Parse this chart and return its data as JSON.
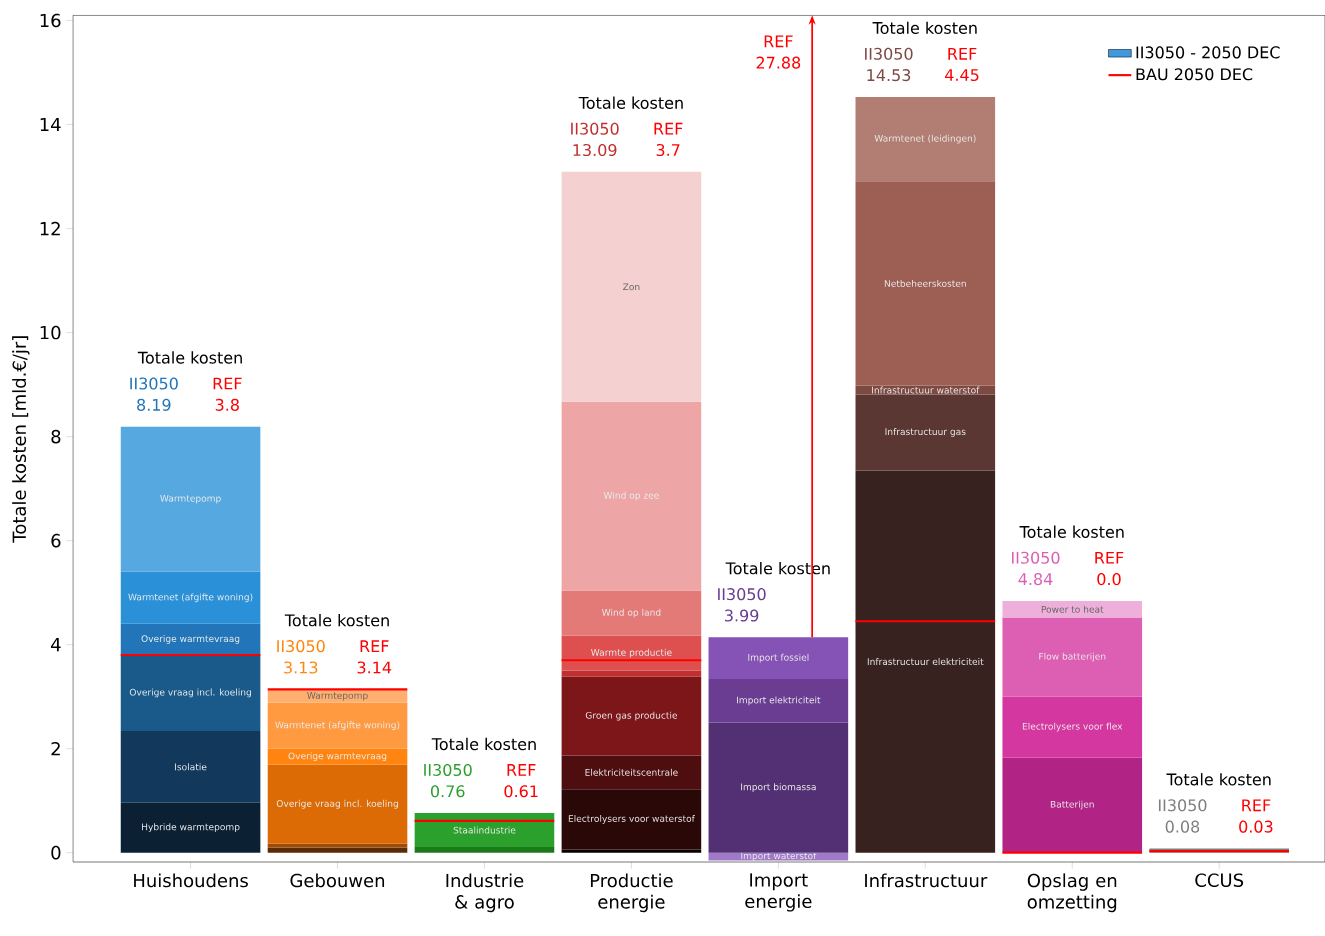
{
  "chart_data": {
    "type": "bar",
    "stacked": true,
    "ylabel": "Totale kosten [mld.€/jr]",
    "categories": [
      "Huishoudens",
      "Gebouwen",
      "Industrie & agro",
      "Productie energie",
      "Import energie",
      "Infrastructuur",
      "Opslag en omzetting",
      "CCUS"
    ],
    "ylim": [
      -0.18,
      16.1
    ],
    "yticks": [
      0,
      2,
      4,
      6,
      8,
      10,
      12,
      14,
      16
    ],
    "legend": "top right",
    "totals": [
      "8.19",
      "3.13",
      "0.76",
      "13.09",
      "3.99",
      "14.53",
      "4.84",
      "0.08"
    ],
    "series": [
      {
        "type": "bar",
        "name": "II3050 - 2050 DEC",
        "color": "#3d9ae0",
        "values": [
          null,
          null,
          null,
          null,
          null,
          null,
          null,
          null
        ]
      },
      {
        "name": "Hybride warmtepomp",
        "color": "#0b2033",
        "values": [
          0.96,
          null,
          null,
          null,
          null,
          null,
          null,
          null
        ]
      },
      {
        "name": "Isolatie",
        "color": "#12395c",
        "values": [
          1.38,
          null,
          null,
          null,
          null,
          null,
          null,
          null
        ]
      },
      {
        "name": "Overige vraag incl. koeling",
        "color": "#1a5a8a",
        "values": [
          1.46,
          null,
          null,
          null,
          null,
          null,
          null,
          null
        ]
      },
      {
        "name": "Overige warmtevraag",
        "color": "#2275b8",
        "values": [
          0.6,
          null,
          null,
          null,
          null,
          null,
          null,
          null
        ]
      },
      {
        "name": "Warmtenet (afgifte woning)",
        "color": "#2a90d8",
        "values": [
          1.0,
          null,
          null,
          null,
          null,
          null,
          null,
          null
        ]
      },
      {
        "name": "Warmtepomp",
        "color": "#56a8e0",
        "values": [
          2.79,
          null,
          null,
          null,
          null,
          null,
          null,
          null
        ]
      },
      {
        "color": "#5a2b06",
        "values": [
          null,
          0.1,
          null,
          null,
          null,
          null,
          null,
          null
        ]
      },
      {
        "color": "#a04a08",
        "values": [
          null,
          0.07,
          null,
          null,
          null,
          null,
          null,
          null
        ]
      },
      {
        "name": "Overige vraag incl. koeling",
        "color": "#dc6b05",
        "values": [
          null,
          1.52,
          null,
          null,
          null,
          null,
          null,
          null
        ]
      },
      {
        "name": "Overige warmtevraag",
        "color": "#ff8510",
        "values": [
          null,
          0.31,
          null,
          null,
          null,
          null,
          null,
          null
        ]
      },
      {
        "name": "Warmtenet (afgifte woning)",
        "color": "#ff9a40",
        "values": [
          null,
          0.88,
          null,
          null,
          null,
          null,
          null,
          null
        ]
      },
      {
        "name": "Warmtepomp",
        "color": "#ffb070",
        "values": [
          null,
          0.25,
          null,
          null,
          null,
          null,
          null,
          null
        ]
      },
      {
        "color": "#1c7a1c",
        "values": [
          null,
          null,
          0.11,
          null,
          null,
          null,
          null,
          null
        ]
      },
      {
        "name": "Staalindustrie",
        "color": "#2ca02c",
        "values": [
          null,
          null,
          0.65,
          null,
          null,
          null,
          null,
          null
        ]
      },
      {
        "color": "#0a0000",
        "values": [
          null,
          null,
          null,
          0.06,
          null,
          null,
          null,
          null
        ]
      },
      {
        "name": "Electrolysers voor waterstof",
        "color": "#2a0808",
        "values": [
          null,
          null,
          null,
          1.16,
          null,
          null,
          null,
          null
        ]
      },
      {
        "name": "Elektriciteitscentrale",
        "color": "#4e0d0f",
        "values": [
          null,
          null,
          null,
          0.65,
          null,
          null,
          null,
          null
        ]
      },
      {
        "name": "Groen gas productie",
        "color": "#7c1619",
        "values": [
          null,
          null,
          null,
          1.51,
          null,
          null,
          null,
          null
        ]
      },
      {
        "color": "#c03030",
        "values": [
          null,
          null,
          null,
          0.12,
          null,
          null,
          null,
          null
        ]
      },
      {
        "name": "Warmte productie",
        "color": "#de5050",
        "values": [
          null,
          null,
          null,
          0.67,
          null,
          null,
          null,
          null
        ]
      },
      {
        "name": "Wind op land",
        "color": "#e47a78",
        "values": [
          null,
          null,
          null,
          0.87,
          null,
          null,
          null,
          null
        ]
      },
      {
        "name": "Wind op zee",
        "color": "#eda5a5",
        "values": [
          null,
          null,
          null,
          3.63,
          null,
          null,
          null,
          null
        ]
      },
      {
        "name": "Zon",
        "color": "#f5d0d0",
        "values": [
          null,
          null,
          null,
          4.42,
          null,
          null,
          null,
          null
        ]
      },
      {
        "name": "Import waterstof",
        "color": "#a07ac8",
        "values": [
          null,
          null,
          null,
          null,
          -0.15,
          null,
          null,
          null
        ]
      },
      {
        "name": "Import biomassa",
        "color": "#532f73",
        "values": [
          null,
          null,
          null,
          null,
          2.5,
          null,
          null,
          null
        ]
      },
      {
        "name": "Import elektriciteit",
        "color": "#6a3d92",
        "values": [
          null,
          null,
          null,
          null,
          0.84,
          null,
          null,
          null
        ]
      },
      {
        "name": "Import fossiel",
        "color": "#8552b5",
        "values": [
          null,
          null,
          null,
          null,
          0.8,
          null,
          null,
          null
        ]
      },
      {
        "name": "Infrastructuur elektriciteit",
        "color": "#38221f",
        "values": [
          null,
          null,
          null,
          null,
          null,
          7.35,
          null,
          null
        ]
      },
      {
        "name": "Infrastructuur gas",
        "color": "#5a3732",
        "values": [
          null,
          null,
          null,
          null,
          null,
          1.46,
          null,
          null
        ]
      },
      {
        "name": "Infrastructuur waterstof",
        "color": "#7d4a42",
        "values": [
          null,
          null,
          null,
          null,
          null,
          0.17,
          null,
          null
        ]
      },
      {
        "name": "Netbeheerskosten",
        "color": "#9d5f54",
        "values": [
          null,
          null,
          null,
          null,
          null,
          3.93,
          null,
          null
        ]
      },
      {
        "name": "Warmtenet (leidingen)",
        "color": "#b27d72",
        "values": [
          null,
          null,
          null,
          null,
          null,
          1.62,
          null,
          null
        ]
      },
      {
        "name": "Batterijen",
        "color": "#b22386",
        "values": [
          null,
          null,
          null,
          null,
          null,
          null,
          1.83,
          null
        ]
      },
      {
        "name": "Electrolysers voor flex",
        "color": "#d4379f",
        "values": [
          null,
          null,
          null,
          null,
          null,
          null,
          1.17,
          null
        ]
      },
      {
        "name": "Flow batterijen",
        "color": "#dc5fb4",
        "values": [
          null,
          null,
          null,
          null,
          null,
          null,
          1.52,
          null
        ]
      },
      {
        "name": "Power to heat",
        "color": "#eeb0db",
        "values": [
          null,
          null,
          null,
          null,
          null,
          null,
          0.32,
          null
        ]
      },
      {
        "color": "#7f7f7f",
        "values": [
          null,
          null,
          null,
          null,
          null,
          null,
          null,
          0.08
        ]
      }
    ],
    "ref_lines": [
      {
        "axis": "y",
        "value": 3.8,
        "color": "#ff0000",
        "label": "BAU 2050 DEC"
      },
      {
        "axis": "y",
        "value": 3.14,
        "color": "#ff0000"
      },
      {
        "axis": "y",
        "value": 0.61,
        "color": "#ff0000"
      },
      {
        "axis": "y",
        "value": 3.7,
        "color": "#ff0000"
      },
      {
        "axis": "y",
        "value": null,
        "color": "#ff0000"
      },
      {
        "axis": "y",
        "value": 4.45,
        "color": "#ff0000"
      },
      {
        "axis": "y",
        "value": 0.0,
        "color": "#ff0000"
      },
      {
        "axis": "y",
        "value": 0.03,
        "color": "#ff0000"
      }
    ],
    "annotations": [
      "Totale kosten",
      "II3050",
      "REF",
      "3.8",
      "Totale kosten",
      "II3050",
      "REF",
      "3.14",
      "Totale kosten",
      "II3050",
      "REF",
      "0.61",
      "Totale kosten",
      "II3050",
      "REF",
      "3.7",
      "Totale kosten",
      "II3050",
      "REF",
      "27.88",
      "Totale kosten",
      "II3050",
      "REF",
      "4.45",
      "Totale kosten",
      "II3050",
      "REF",
      "0.0",
      "Totale kosten",
      "II3050",
      "REF",
      "0.03"
    ]
  }
}
